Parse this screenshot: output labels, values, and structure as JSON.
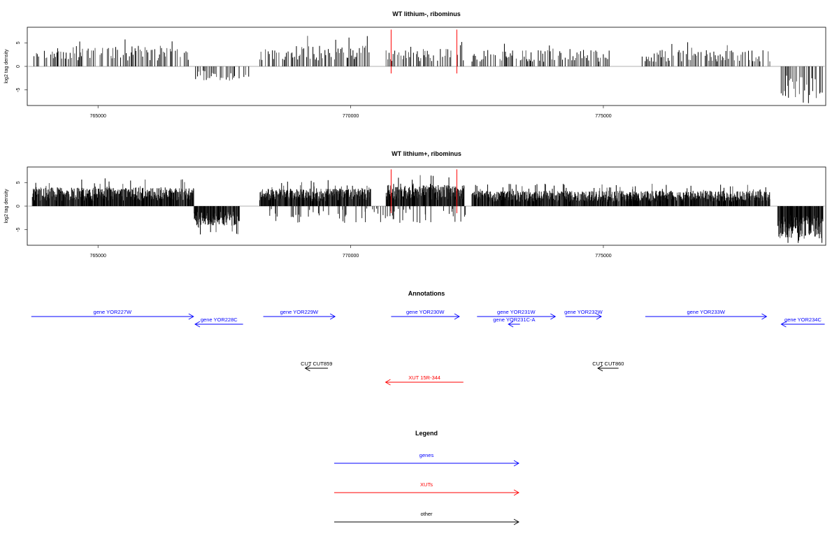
{
  "tracks": [
    {
      "title": "WT lithium-, ribominus",
      "ylabel": "log2 tag density",
      "y_ticks": [
        "-5",
        "0",
        "5"
      ],
      "x_ticks": [
        "765000",
        "770000",
        "775000"
      ]
    },
    {
      "title": "WT lithium+, ribominus",
      "ylabel": "log2 tag density",
      "y_ticks": [
        "-5",
        "0",
        "5"
      ],
      "x_ticks": [
        "765000",
        "770000",
        "775000"
      ]
    }
  ],
  "annotations": {
    "title": "Annotations",
    "features": [
      {
        "label": "gene YOR227W",
        "type": "gene",
        "strand": "+",
        "start": 763680,
        "end": 766890
      },
      {
        "label": "gene YOR228C",
        "type": "gene",
        "strand": "-",
        "start": 766920,
        "end": 767870
      },
      {
        "label": "gene YOR229W",
        "type": "gene",
        "strand": "+",
        "start": 768270,
        "end": 769690
      },
      {
        "label": "gene YOR230W",
        "type": "gene",
        "strand": "+",
        "start": 770800,
        "end": 772150
      },
      {
        "label": "gene YOR231W",
        "type": "gene",
        "strand": "+",
        "start": 772500,
        "end": 774050
      },
      {
        "label": "gene YOR231C-A",
        "type": "gene",
        "strand": "-",
        "start": 773120,
        "end": 773350
      },
      {
        "label": "gene YOR232W",
        "type": "gene",
        "strand": "+",
        "start": 774250,
        "end": 774960
      },
      {
        "label": "gene YOR233W",
        "type": "gene",
        "strand": "+",
        "start": 775830,
        "end": 778230
      },
      {
        "label": "gene YOR234C",
        "type": "gene",
        "strand": "-",
        "start": 778520,
        "end": 779380
      },
      {
        "label": "CUT CUT859",
        "type": "other",
        "strand": "-",
        "start": 769100,
        "end": 769550
      },
      {
        "label": "CUT CUT860",
        "type": "other",
        "strand": "-",
        "start": 774890,
        "end": 775300
      },
      {
        "label": "XUT 15R-344",
        "type": "xut",
        "strand": "-",
        "start": 770690,
        "end": 772230
      }
    ]
  },
  "legend": {
    "title": "Legend",
    "items": [
      {
        "label": "genes",
        "color": "#0000ff"
      },
      {
        "label": "XUTs",
        "color": "#ff0000"
      },
      {
        "label": "other",
        "color": "#000000"
      }
    ]
  },
  "chart_data": {
    "type": "bar",
    "x_range": [
      763620,
      779380
    ],
    "xlim": [
      763600,
      779400
    ],
    "ylim": [
      -8.3,
      8.3
    ],
    "x_ticks": [
      765000,
      770000,
      775000
    ],
    "y_ticks": [
      -5,
      0,
      5
    ],
    "highlight_positions": [
      770800,
      772100
    ],
    "highlight_color": "#ff0000",
    "bar_color": "#000000",
    "series": [
      {
        "density": "sparse",
        "segments": [
          [
            763700,
            766800,
            1,
            3.5
          ],
          [
            766900,
            768000,
            -1,
            2.5
          ],
          [
            768200,
            770400,
            1,
            3.5
          ],
          [
            770700,
            772250,
            1,
            3.0
          ],
          [
            772400,
            775200,
            1,
            2.8
          ],
          [
            775700,
            778300,
            1,
            2.8
          ],
          [
            778500,
            779350,
            -1,
            5.5
          ]
        ]
      },
      {
        "density": "dense",
        "segments": [
          [
            763700,
            766900,
            1,
            3.2
          ],
          [
            766900,
            767800,
            -1,
            3.3
          ],
          [
            768200,
            770400,
            1,
            3.0
          ],
          [
            770700,
            772250,
            1,
            3.6
          ],
          [
            772400,
            778300,
            1,
            2.6
          ],
          [
            778450,
            779350,
            -1,
            5.5
          ]
        ]
      }
    ]
  }
}
